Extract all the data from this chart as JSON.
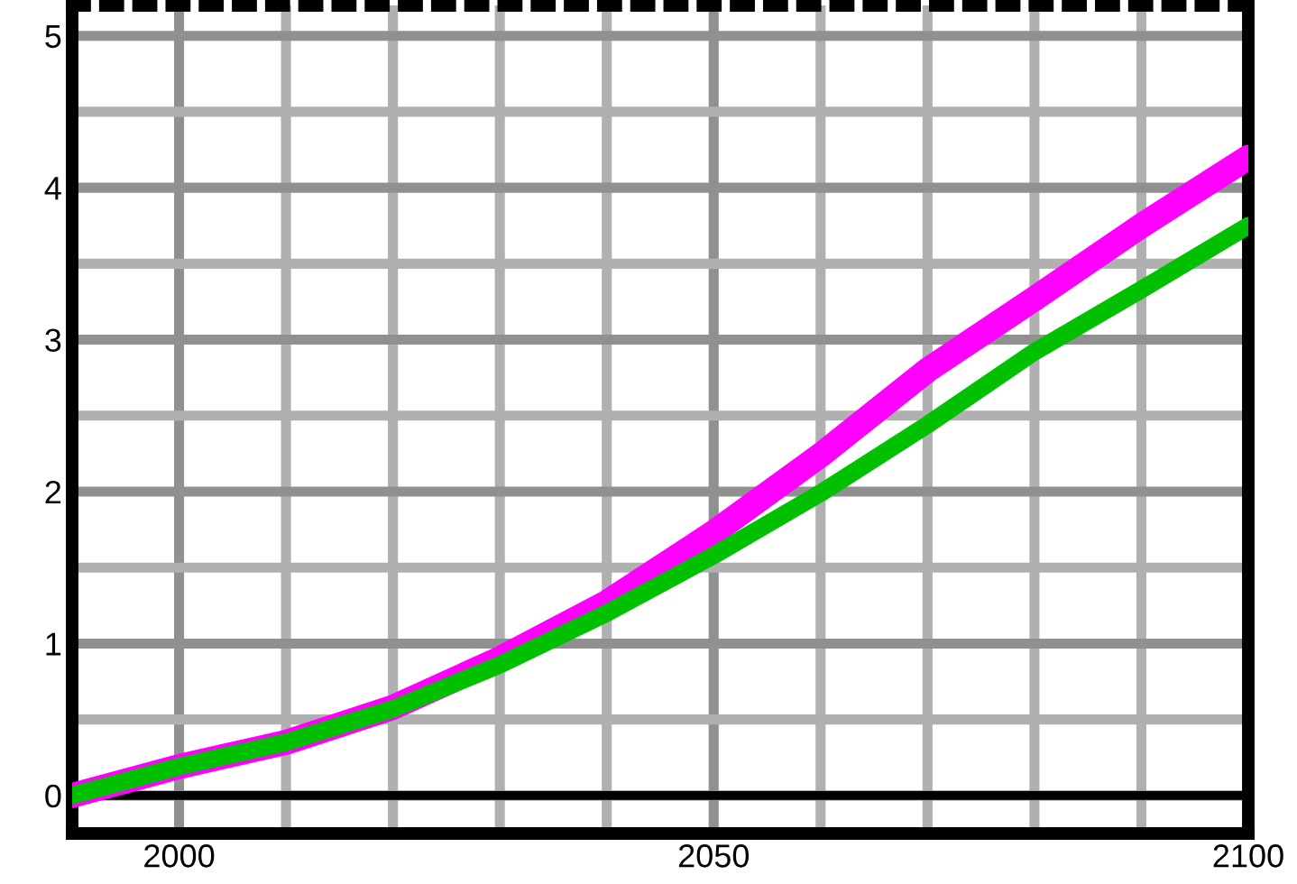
{
  "chart_data": {
    "type": "line",
    "x": [
      1990,
      2000,
      2010,
      2020,
      2030,
      2040,
      2050,
      2060,
      2070,
      2080,
      2090,
      2100
    ],
    "series": [
      {
        "color": "#ff00ff",
        "values": [
          0,
          0.19,
          0.35,
          0.58,
          0.9,
          1.27,
          1.73,
          2.24,
          2.8,
          3.27,
          3.75,
          4.2
        ]
      },
      {
        "color": "#00c000",
        "values": [
          0,
          0.19,
          0.35,
          0.57,
          0.86,
          1.2,
          1.58,
          1.99,
          2.44,
          2.92,
          3.33,
          3.75
        ]
      }
    ],
    "xlim": [
      1990,
      2100
    ],
    "ylim": [
      -0.25,
      5.2
    ],
    "xticks": [
      2000,
      {
        "value": 2010,
        "label": null
      },
      {
        "value": 2020,
        "label": null
      },
      {
        "value": 2030,
        "label": null
      },
      {
        "value": 2040,
        "label": null
      },
      2050,
      {
        "value": 2060,
        "label": null
      },
      {
        "value": 2070,
        "label": null
      },
      {
        "value": 2080,
        "label": null
      },
      {
        "value": 2090,
        "label": null
      },
      2100
    ],
    "yticks": [
      0,
      {
        "value": 0.5,
        "label": null
      },
      1,
      {
        "value": 1.5,
        "label": null
      },
      2,
      {
        "value": 2.5,
        "label": null
      },
      3,
      {
        "value": 3.5,
        "label": null
      },
      4,
      {
        "value": 4.5,
        "label": null
      },
      5
    ],
    "grid": true,
    "marker": "none",
    "line_style": "solid",
    "ref_lines": [
      {
        "axis": "y",
        "value": 0,
        "color": "#000000",
        "line_style": "solid"
      }
    ]
  }
}
